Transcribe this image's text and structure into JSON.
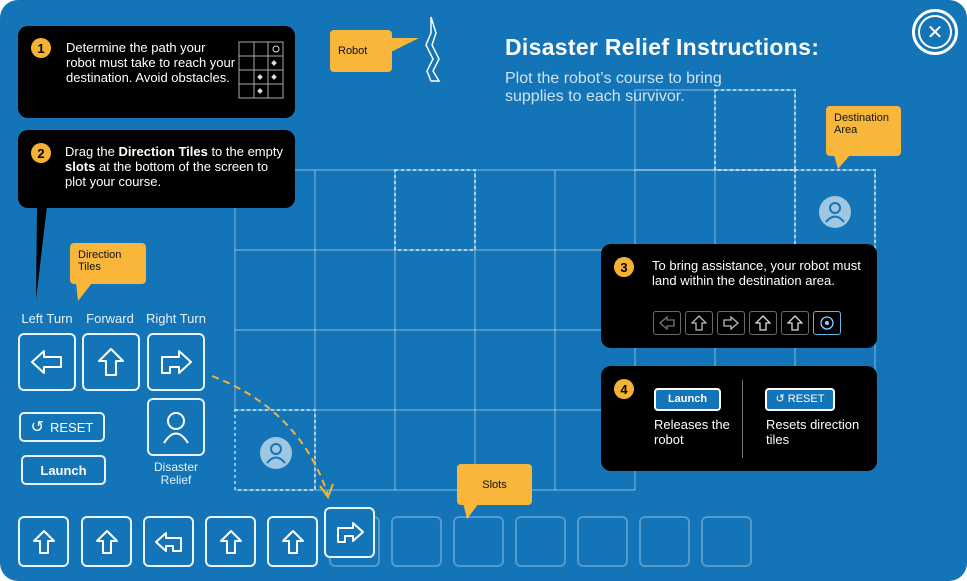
{
  "header": {
    "title": "Disaster Relief Instructions:",
    "subtitle": "Plot the robot’s course to bring supplies to each survivor."
  },
  "steps": {
    "step1": {
      "num": "1",
      "text": "Determine the path your robot must take to reach your destination. Avoid obstacles."
    },
    "step2": {
      "num": "2",
      "text_a": "Drag the ",
      "bold_a": "Direction Tiles",
      "text_b": " to the empty ",
      "bold_b": "slots",
      "text_c": " at the bottom of the screen to plot your course."
    },
    "step3": {
      "num": "3",
      "text": "To bring assistance, your robot must land within the destination area."
    },
    "step4": {
      "num": "4",
      "launch_label": "Launch",
      "launch_desc": "Releases the robot",
      "reset_label": "RESET",
      "reset_desc": "Resets direction tiles"
    }
  },
  "tags": {
    "robot": "Robot",
    "destination": "Destination Area",
    "direction_tiles": "Direction Tiles",
    "slots": "Slots"
  },
  "palette": {
    "left_turn": "Left Turn",
    "forward": "Forward",
    "right_turn": "Right Turn",
    "disaster_relief": "Disaster Relief",
    "reset": "RESET",
    "launch": "Launch"
  },
  "slots": {
    "filled": [
      "forward-icon",
      "forward-icon",
      "left-turn-icon",
      "forward-icon",
      "forward-icon",
      "right-turn-icon"
    ],
    "empty_count": 6
  },
  "colors": {
    "background": "#1374b7",
    "accent": "#f8b63a",
    "callout": "#000000"
  }
}
